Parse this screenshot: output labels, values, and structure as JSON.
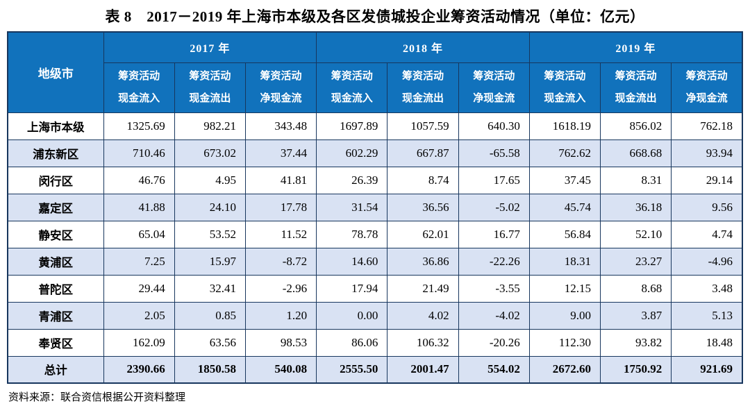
{
  "title": "表 8　2017－2019 年上海市本级及各区发债城投企业筹资活动情况（单位：亿元）",
  "source_note": "资料来源：联合资信根据公开资料整理",
  "colors": {
    "header_bg": "#1172BC",
    "header_text": "#FFFFFF",
    "alt_row_bg": "#D9E2F3",
    "border": "#17365D",
    "body_text": "#000000"
  },
  "table": {
    "corner_header": "地级市",
    "years": [
      "2017 年",
      "2018 年",
      "2019 年"
    ],
    "sub_headers": [
      {
        "line1": "筹资活动",
        "line2": "现金流入"
      },
      {
        "line1": "筹资活动",
        "line2": "现金流出"
      },
      {
        "line1": "筹资活动",
        "line2": "净现金流"
      }
    ],
    "rows": [
      {
        "region": "上海市本级",
        "is_total": false,
        "values": [
          "1325.69",
          "982.21",
          "343.48",
          "1697.89",
          "1057.59",
          "640.30",
          "1618.19",
          "856.02",
          "762.18"
        ]
      },
      {
        "region": "浦东新区",
        "is_total": false,
        "values": [
          "710.46",
          "673.02",
          "37.44",
          "602.29",
          "667.87",
          "-65.58",
          "762.62",
          "668.68",
          "93.94"
        ]
      },
      {
        "region": "闵行区",
        "is_total": false,
        "values": [
          "46.76",
          "4.95",
          "41.81",
          "26.39",
          "8.74",
          "17.65",
          "37.45",
          "8.31",
          "29.14"
        ]
      },
      {
        "region": "嘉定区",
        "is_total": false,
        "values": [
          "41.88",
          "24.10",
          "17.78",
          "31.54",
          "36.56",
          "-5.02",
          "45.74",
          "36.18",
          "9.56"
        ]
      },
      {
        "region": "静安区",
        "is_total": false,
        "values": [
          "65.04",
          "53.52",
          "11.52",
          "78.78",
          "62.01",
          "16.77",
          "56.84",
          "52.10",
          "4.74"
        ]
      },
      {
        "region": "黄浦区",
        "is_total": false,
        "values": [
          "7.25",
          "15.97",
          "-8.72",
          "14.60",
          "36.86",
          "-22.26",
          "18.31",
          "23.27",
          "-4.96"
        ]
      },
      {
        "region": "普陀区",
        "is_total": false,
        "values": [
          "29.44",
          "32.41",
          "-2.96",
          "17.94",
          "21.49",
          "-3.55",
          "12.15",
          "8.68",
          "3.48"
        ]
      },
      {
        "region": "青浦区",
        "is_total": false,
        "values": [
          "2.05",
          "0.85",
          "1.20",
          "0.00",
          "4.02",
          "-4.02",
          "9.00",
          "3.87",
          "5.13"
        ]
      },
      {
        "region": "奉贤区",
        "is_total": false,
        "values": [
          "162.09",
          "63.56",
          "98.53",
          "86.06",
          "106.32",
          "-20.26",
          "112.30",
          "93.82",
          "18.48"
        ]
      },
      {
        "region": "总计",
        "is_total": true,
        "values": [
          "2390.66",
          "1850.58",
          "540.08",
          "2555.50",
          "2001.47",
          "554.02",
          "2672.60",
          "1750.92",
          "921.69"
        ]
      }
    ]
  }
}
